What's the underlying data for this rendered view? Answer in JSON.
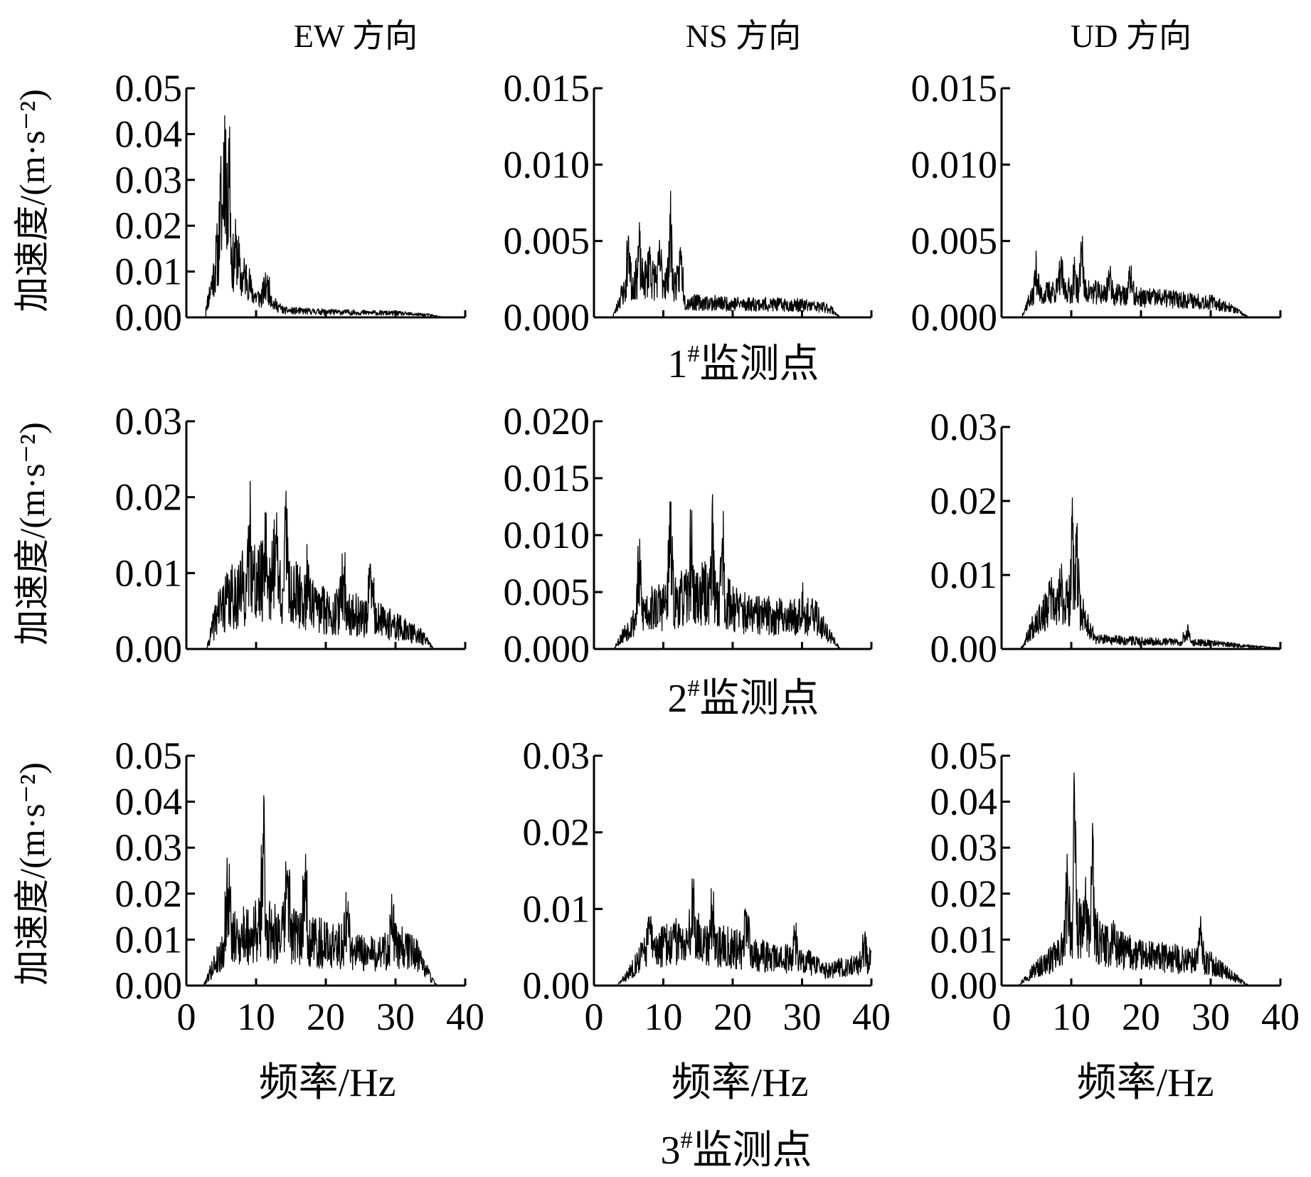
{
  "figure": {
    "column_titles": [
      "EW 方向",
      "NS 方向",
      "UD 方向"
    ],
    "ylabel": "加速度/(m·s⁻²)",
    "xlabel": "频率/Hz",
    "station_labels": [
      {
        "num": "1",
        "sup": "#",
        "text": "监测点"
      },
      {
        "num": "2",
        "sup": "#",
        "text": "监测点"
      },
      {
        "num": "3",
        "sup": "#",
        "text": "监测点"
      }
    ]
  },
  "chart_data": [
    {
      "id": "s1-ew",
      "type": "line",
      "station": "1#监测点",
      "direction": "EW 方向",
      "xlim": [
        0,
        40
      ],
      "ylim": [
        0,
        0.05
      ],
      "yticks": [
        "0.00",
        "0.01",
        "0.02",
        "0.03",
        "0.04",
        "0.05"
      ],
      "xticks": [
        "0",
        "10",
        "20",
        "30",
        "40"
      ],
      "spectrum": {
        "start": 2.8,
        "end": 37,
        "seed": 11,
        "noise": 0.55,
        "peaks": [
          [
            5.5,
            0.044,
            0.25
          ],
          [
            6.1,
            0.039,
            0.25
          ],
          [
            5.0,
            0.026,
            0.4
          ],
          [
            7.2,
            0.016,
            0.5
          ],
          [
            4.5,
            0.015,
            0.5
          ],
          [
            8.5,
            0.01,
            0.8
          ],
          [
            11.5,
            0.007,
            0.8
          ]
        ],
        "envelope": [
          [
            3,
            0.003
          ],
          [
            4.2,
            0.011
          ],
          [
            6,
            0.014
          ],
          [
            8,
            0.008
          ],
          [
            10,
            0.0045
          ],
          [
            12,
            0.0035
          ],
          [
            14,
            0.0015
          ],
          [
            20,
            0.0012
          ],
          [
            30,
            0.0009
          ],
          [
            35,
            0.0005
          ],
          [
            37,
            0
          ]
        ]
      }
    },
    {
      "id": "s1-ns",
      "type": "line",
      "station": "1#监测点",
      "direction": "NS 方向",
      "xlim": [
        0,
        40
      ],
      "ylim": [
        0,
        0.015
      ],
      "yticks": [
        "0.000",
        "0.005",
        "0.010",
        "0.015"
      ],
      "xticks": [
        "0",
        "10",
        "20",
        "30",
        "40"
      ],
      "spectrum": {
        "start": 2.8,
        "end": 35.5,
        "seed": 23,
        "noise": 0.55,
        "peaks": [
          [
            5.0,
            0.0052,
            0.3
          ],
          [
            6.5,
            0.0046,
            0.3
          ],
          [
            8.0,
            0.0045,
            0.3
          ],
          [
            11.0,
            0.0059,
            0.3
          ],
          [
            12.5,
            0.0038,
            0.4
          ],
          [
            9.5,
            0.0038,
            0.4
          ]
        ],
        "envelope": [
          [
            3,
            0.0003
          ],
          [
            4,
            0.0015
          ],
          [
            6,
            0.0025
          ],
          [
            10,
            0.0025
          ],
          [
            12,
            0.0022
          ],
          [
            13,
            0.001
          ],
          [
            20,
            0.0009
          ],
          [
            30,
            0.0008
          ],
          [
            34,
            0.0006
          ],
          [
            35.5,
            0
          ]
        ]
      }
    },
    {
      "id": "s1-ud",
      "type": "line",
      "station": "1#监测点",
      "direction": "UD 方向",
      "xlim": [
        0,
        40
      ],
      "ylim": [
        0,
        0.015
      ],
      "yticks": [
        "0.000",
        "0.005",
        "0.010",
        "0.015"
      ],
      "xticks": [
        "0",
        "10",
        "20",
        "30",
        "40"
      ],
      "spectrum": {
        "start": 3,
        "end": 35.5,
        "seed": 37,
        "noise": 0.5,
        "peaks": [
          [
            11.5,
            0.0045,
            0.3
          ],
          [
            5.0,
            0.0032,
            0.4
          ],
          [
            8.5,
            0.0032,
            0.4
          ],
          [
            15.5,
            0.0028,
            0.5
          ],
          [
            18.5,
            0.0026,
            0.5
          ],
          [
            10.5,
            0.003,
            0.4
          ]
        ],
        "envelope": [
          [
            3,
            0.0002
          ],
          [
            4,
            0.0012
          ],
          [
            8,
            0.0018
          ],
          [
            12,
            0.0017
          ],
          [
            16,
            0.0015
          ],
          [
            20,
            0.0013
          ],
          [
            25,
            0.0012
          ],
          [
            30,
            0.001
          ],
          [
            33,
            0.0006
          ],
          [
            35.5,
            0
          ]
        ]
      }
    },
    {
      "id": "s2-ew",
      "type": "line",
      "station": "2#监测点",
      "direction": "EW 方向",
      "xlim": [
        0,
        40
      ],
      "ylim": [
        0,
        0.03
      ],
      "yticks": [
        "0.00",
        "0.01",
        "0.02",
        "0.03"
      ],
      "xticks": [
        "0",
        "10",
        "20",
        "30",
        "40"
      ],
      "spectrum": {
        "start": 3,
        "end": 35.5,
        "seed": 41,
        "noise": 0.65,
        "peaks": [
          [
            11.3,
            0.018,
            0.3
          ],
          [
            14.4,
            0.0185,
            0.3
          ],
          [
            9.2,
            0.016,
            0.4
          ],
          [
            12.8,
            0.015,
            0.4
          ],
          [
            22.5,
            0.0095,
            0.5
          ],
          [
            26.5,
            0.009,
            0.5
          ],
          [
            17.5,
            0.01,
            0.5
          ]
        ],
        "envelope": [
          [
            3,
            0.0003
          ],
          [
            4.5,
            0.005
          ],
          [
            8,
            0.008
          ],
          [
            12,
            0.009
          ],
          [
            15,
            0.0075
          ],
          [
            18,
            0.0055
          ],
          [
            22,
            0.0048
          ],
          [
            26,
            0.0042
          ],
          [
            30,
            0.003
          ],
          [
            34,
            0.0015
          ],
          [
            35.5,
            0
          ]
        ]
      }
    },
    {
      "id": "s2-ns",
      "type": "line",
      "station": "2#监测点",
      "direction": "NS 方向",
      "xlim": [
        0,
        40
      ],
      "ylim": [
        0,
        0.02
      ],
      "yticks": [
        "0.000",
        "0.005",
        "0.010",
        "0.015",
        "0.020"
      ],
      "xticks": [
        "0",
        "10",
        "20",
        "30",
        "40"
      ],
      "spectrum": {
        "start": 3,
        "end": 35.5,
        "seed": 53,
        "noise": 0.6,
        "peaks": [
          [
            17.0,
            0.0103,
            0.3
          ],
          [
            18.5,
            0.0097,
            0.3
          ],
          [
            11.0,
            0.0092,
            0.4
          ],
          [
            14.0,
            0.0088,
            0.4
          ],
          [
            6.5,
            0.0068,
            0.4
          ],
          [
            30.0,
            0.005,
            0.5
          ]
        ],
        "envelope": [
          [
            3,
            0.0002
          ],
          [
            4.5,
            0.0015
          ],
          [
            7,
            0.0033
          ],
          [
            12,
            0.0042
          ],
          [
            16,
            0.0048
          ],
          [
            19,
            0.0042
          ],
          [
            22,
            0.003
          ],
          [
            28,
            0.0028
          ],
          [
            32,
            0.0028
          ],
          [
            34,
            0.0012
          ],
          [
            35.5,
            0
          ]
        ]
      }
    },
    {
      "id": "s2-ud",
      "type": "line",
      "station": "2#监测点",
      "direction": "UD 方向",
      "xlim": [
        0,
        40
      ],
      "ylim": [
        0,
        0.03
      ],
      "yticks": [
        "0.00",
        "0.01",
        "0.02",
        "0.03"
      ],
      "xticks": [
        "0",
        "10",
        "20",
        "30",
        "40"
      ],
      "spectrum": {
        "start": 2.8,
        "end": 40,
        "seed": 67,
        "noise": 0.55,
        "peaks": [
          [
            10.1,
            0.0163,
            0.25
          ],
          [
            10.8,
            0.0125,
            0.3
          ],
          [
            8.5,
            0.0088,
            0.4
          ],
          [
            7.0,
            0.0075,
            0.4
          ],
          [
            26.5,
            0.0025,
            0.5
          ]
        ],
        "envelope": [
          [
            3,
            0.0003
          ],
          [
            5,
            0.0042
          ],
          [
            8,
            0.0058
          ],
          [
            10.5,
            0.0068
          ],
          [
            12,
            0.004
          ],
          [
            13.5,
            0.0013
          ],
          [
            20,
            0.0011
          ],
          [
            30,
            0.0008
          ],
          [
            35,
            0.0004
          ],
          [
            40,
            0.0001
          ]
        ]
      }
    },
    {
      "id": "s3-ew",
      "type": "line",
      "station": "3#监测点",
      "direction": "EW 方向",
      "xlim": [
        0,
        40
      ],
      "ylim": [
        0,
        0.05
      ],
      "yticks": [
        "0.00",
        "0.01",
        "0.02",
        "0.03",
        "0.04",
        "0.05"
      ],
      "xticks": [
        "0",
        "10",
        "20",
        "30",
        "40"
      ],
      "spectrum": {
        "start": 2.5,
        "end": 36,
        "seed": 79,
        "noise": 0.6,
        "peaks": [
          [
            11.0,
            0.033,
            0.3
          ],
          [
            14.5,
            0.025,
            0.4
          ],
          [
            17.0,
            0.0245,
            0.4
          ],
          [
            6.0,
            0.021,
            0.5
          ],
          [
            23.0,
            0.016,
            0.5
          ],
          [
            29.5,
            0.014,
            0.5
          ]
        ],
        "envelope": [
          [
            2.5,
            0.0002
          ],
          [
            4,
            0.0045
          ],
          [
            6,
            0.0095
          ],
          [
            11,
            0.0125
          ],
          [
            15,
            0.011
          ],
          [
            18,
            0.0095
          ],
          [
            22,
            0.0085
          ],
          [
            26,
            0.0065
          ],
          [
            30,
            0.0085
          ],
          [
            33,
            0.007
          ],
          [
            35,
            0.0018
          ],
          [
            36,
            0
          ]
        ]
      }
    },
    {
      "id": "s3-ns",
      "type": "line",
      "station": "3#监测点",
      "direction": "NS 方向",
      "xlim": [
        0,
        40
      ],
      "ylim": [
        0,
        0.03
      ],
      "yticks": [
        "0.00",
        "0.01",
        "0.02",
        "0.03"
      ],
      "xticks": [
        "0",
        "10",
        "20",
        "30",
        "40"
      ],
      "spectrum": {
        "start": 3.5,
        "end": 40,
        "seed": 83,
        "noise": 0.55,
        "peaks": [
          [
            14.3,
            0.0127,
            0.3
          ],
          [
            17.0,
            0.0105,
            0.4
          ],
          [
            22.0,
            0.0095,
            0.4
          ],
          [
            8.0,
            0.008,
            0.5
          ],
          [
            29.0,
            0.0065,
            0.5
          ],
          [
            39.0,
            0.0055,
            0.5
          ]
        ],
        "envelope": [
          [
            3.5,
            0.0002
          ],
          [
            5,
            0.0015
          ],
          [
            7,
            0.0042
          ],
          [
            14,
            0.0065
          ],
          [
            18,
            0.0052
          ],
          [
            22,
            0.0045
          ],
          [
            26,
            0.0035
          ],
          [
            30,
            0.0035
          ],
          [
            33,
            0.002
          ],
          [
            37,
            0.0025
          ],
          [
            40,
            0.0033
          ]
        ]
      }
    },
    {
      "id": "s3-ud",
      "type": "line",
      "station": "3#监测点",
      "direction": "UD 方向",
      "xlim": [
        0,
        40
      ],
      "ylim": [
        0,
        0.05
      ],
      "yticks": [
        "0.00",
        "0.01",
        "0.02",
        "0.03",
        "0.04",
        "0.05"
      ],
      "xticks": [
        "0",
        "10",
        "20",
        "30",
        "40"
      ],
      "spectrum": {
        "start": 2.5,
        "end": 35.5,
        "seed": 97,
        "noise": 0.55,
        "peaks": [
          [
            10.5,
            0.0355,
            0.25
          ],
          [
            13.0,
            0.0252,
            0.3
          ],
          [
            9.5,
            0.022,
            0.4
          ],
          [
            12.0,
            0.018,
            0.4
          ],
          [
            28.5,
            0.011,
            0.5
          ],
          [
            16.0,
            0.012,
            0.5
          ]
        ],
        "envelope": [
          [
            2.5,
            0.0002
          ],
          [
            4.5,
            0.0032
          ],
          [
            8,
            0.0065
          ],
          [
            10.5,
            0.0125
          ],
          [
            13,
            0.0115
          ],
          [
            15,
            0.0085
          ],
          [
            20,
            0.0065
          ],
          [
            25,
            0.0058
          ],
          [
            30,
            0.0048
          ],
          [
            33,
            0.0022
          ],
          [
            35.5,
            0
          ]
        ]
      }
    }
  ]
}
